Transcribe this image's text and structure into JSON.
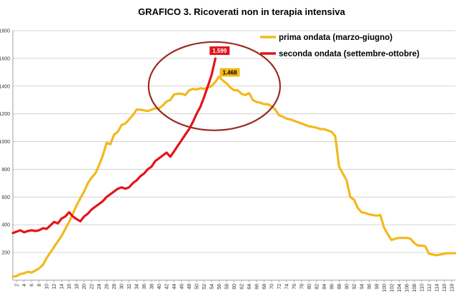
{
  "chart_data": {
    "type": "line",
    "title": "GRAFICO 3. Ricoverati non in terapia intensiva",
    "xlabel": "",
    "ylabel": "",
    "x_range": [
      1,
      119
    ],
    "x_ticks": [
      2,
      4,
      6,
      8,
      10,
      12,
      14,
      16,
      18,
      20,
      22,
      24,
      26,
      28,
      30,
      32,
      34,
      36,
      38,
      40,
      42,
      44,
      46,
      48,
      50,
      52,
      54,
      56,
      58,
      60,
      62,
      64,
      66,
      68,
      70,
      72,
      74,
      76,
      78,
      80,
      82,
      84,
      86,
      88,
      90,
      92,
      94,
      96,
      98,
      100,
      102,
      104,
      106,
      108,
      110,
      112,
      114,
      116,
      118
    ],
    "y_ticks": [
      {
        "value": 0,
        "label": ""
      },
      {
        "value": 200,
        "label": "200"
      },
      {
        "value": 400,
        "label": "400"
      },
      {
        "value": 600,
        "label": "600"
      },
      {
        "value": 800,
        "label": "800"
      },
      {
        "value": 1000,
        "label": "1000"
      },
      {
        "value": 1200,
        "label": "1200"
      },
      {
        "value": 1400,
        "label": "1400"
      },
      {
        "value": 1600,
        "label": "1600"
      },
      {
        "value": 1800,
        "label": "1800"
      }
    ],
    "ylim": [
      0,
      1800
    ],
    "grid": true,
    "legend_position": "top-right",
    "series": [
      {
        "name": "prima ondata (marzo-giugno)",
        "color": "#f2b91c",
        "points": [
          [
            1,
            25
          ],
          [
            2,
            30
          ],
          [
            3,
            45
          ],
          [
            4,
            50
          ],
          [
            5,
            60
          ],
          [
            6,
            55
          ],
          [
            7,
            70
          ],
          [
            8,
            85
          ],
          [
            9,
            110
          ],
          [
            10,
            160
          ],
          [
            11,
            200
          ],
          [
            12,
            240
          ],
          [
            13,
            280
          ],
          [
            14,
            320
          ],
          [
            15,
            370
          ],
          [
            16,
            420
          ],
          [
            17,
            480
          ],
          [
            18,
            540
          ],
          [
            19,
            590
          ],
          [
            20,
            640
          ],
          [
            21,
            700
          ],
          [
            22,
            740
          ],
          [
            23,
            770
          ],
          [
            24,
            830
          ],
          [
            25,
            900
          ],
          [
            26,
            990
          ],
          [
            27,
            980
          ],
          [
            28,
            1050
          ],
          [
            29,
            1070
          ],
          [
            30,
            1120
          ],
          [
            31,
            1130
          ],
          [
            32,
            1160
          ],
          [
            33,
            1190
          ],
          [
            34,
            1230
          ],
          [
            35,
            1230
          ],
          [
            36,
            1225
          ],
          [
            37,
            1220
          ],
          [
            38,
            1230
          ],
          [
            39,
            1240
          ],
          [
            40,
            1240
          ],
          [
            41,
            1260
          ],
          [
            42,
            1290
          ],
          [
            43,
            1300
          ],
          [
            44,
            1340
          ],
          [
            45,
            1345
          ],
          [
            46,
            1345
          ],
          [
            47,
            1335
          ],
          [
            48,
            1370
          ],
          [
            49,
            1380
          ],
          [
            50,
            1375
          ],
          [
            51,
            1385
          ],
          [
            52,
            1380
          ],
          [
            53,
            1390
          ],
          [
            54,
            1400
          ],
          [
            55,
            1430
          ],
          [
            56,
            1468
          ],
          [
            57,
            1440
          ],
          [
            58,
            1420
          ],
          [
            59,
            1390
          ],
          [
            60,
            1370
          ],
          [
            61,
            1370
          ],
          [
            62,
            1345
          ],
          [
            63,
            1335
          ],
          [
            64,
            1350
          ],
          [
            65,
            1300
          ],
          [
            66,
            1285
          ],
          [
            67,
            1280
          ],
          [
            68,
            1270
          ],
          [
            69,
            1270
          ],
          [
            70,
            1255
          ],
          [
            71,
            1230
          ],
          [
            72,
            1190
          ],
          [
            73,
            1180
          ],
          [
            74,
            1165
          ],
          [
            75,
            1160
          ],
          [
            76,
            1150
          ],
          [
            77,
            1140
          ],
          [
            78,
            1130
          ],
          [
            79,
            1120
          ],
          [
            80,
            1110
          ],
          [
            81,
            1105
          ],
          [
            82,
            1100
          ],
          [
            83,
            1090
          ],
          [
            84,
            1090
          ],
          [
            85,
            1080
          ],
          [
            86,
            1070
          ],
          [
            87,
            1040
          ],
          [
            88,
            820
          ],
          [
            89,
            770
          ],
          [
            90,
            720
          ],
          [
            91,
            600
          ],
          [
            92,
            580
          ],
          [
            93,
            520
          ],
          [
            94,
            490
          ],
          [
            95,
            485
          ],
          [
            96,
            475
          ],
          [
            97,
            470
          ],
          [
            98,
            465
          ],
          [
            99,
            470
          ],
          [
            100,
            380
          ],
          [
            101,
            330
          ],
          [
            102,
            290
          ],
          [
            103,
            300
          ],
          [
            104,
            305
          ],
          [
            105,
            305
          ],
          [
            106,
            305
          ],
          [
            107,
            300
          ],
          [
            108,
            270
          ],
          [
            109,
            250
          ],
          [
            110,
            250
          ],
          [
            111,
            245
          ],
          [
            112,
            190
          ],
          [
            113,
            185
          ],
          [
            114,
            180
          ],
          [
            115,
            185
          ],
          [
            116,
            190
          ],
          [
            117,
            195
          ],
          [
            118,
            195
          ],
          [
            119,
            195
          ]
        ]
      },
      {
        "name": "seconda ondata (settembre-ottobre)",
        "color": "#e3141c",
        "points": [
          [
            1,
            340
          ],
          [
            2,
            350
          ],
          [
            3,
            360
          ],
          [
            4,
            345
          ],
          [
            5,
            355
          ],
          [
            6,
            360
          ],
          [
            7,
            355
          ],
          [
            8,
            360
          ],
          [
            9,
            375
          ],
          [
            10,
            370
          ],
          [
            11,
            395
          ],
          [
            12,
            420
          ],
          [
            13,
            410
          ],
          [
            14,
            445
          ],
          [
            15,
            460
          ],
          [
            16,
            490
          ],
          [
            17,
            460
          ],
          [
            18,
            440
          ],
          [
            19,
            425
          ],
          [
            20,
            460
          ],
          [
            21,
            480
          ],
          [
            22,
            510
          ],
          [
            23,
            530
          ],
          [
            24,
            550
          ],
          [
            25,
            570
          ],
          [
            26,
            600
          ],
          [
            27,
            620
          ],
          [
            28,
            640
          ],
          [
            29,
            660
          ],
          [
            30,
            670
          ],
          [
            31,
            660
          ],
          [
            32,
            670
          ],
          [
            33,
            700
          ],
          [
            34,
            720
          ],
          [
            35,
            750
          ],
          [
            36,
            770
          ],
          [
            37,
            800
          ],
          [
            38,
            820
          ],
          [
            39,
            860
          ],
          [
            40,
            880
          ],
          [
            41,
            900
          ],
          [
            42,
            920
          ],
          [
            43,
            890
          ],
          [
            44,
            930
          ],
          [
            45,
            970
          ],
          [
            46,
            1010
          ],
          [
            47,
            1050
          ],
          [
            48,
            1090
          ],
          [
            49,
            1140
          ],
          [
            50,
            1200
          ],
          [
            51,
            1250
          ],
          [
            52,
            1320
          ],
          [
            53,
            1400
          ],
          [
            54,
            1480
          ],
          [
            55,
            1599
          ]
        ]
      }
    ],
    "annotations": [
      {
        "text": "1.599",
        "x": 55,
        "y": 1599,
        "series": 1,
        "bg": "#e3141c",
        "fg": "#ffffff"
      },
      {
        "text": "1.468",
        "x": 56,
        "y": 1468,
        "series": 0,
        "bg": "#f2b91c",
        "fg": "#000000"
      }
    ],
    "highlight_circle": {
      "color": "#9b2a20"
    }
  }
}
